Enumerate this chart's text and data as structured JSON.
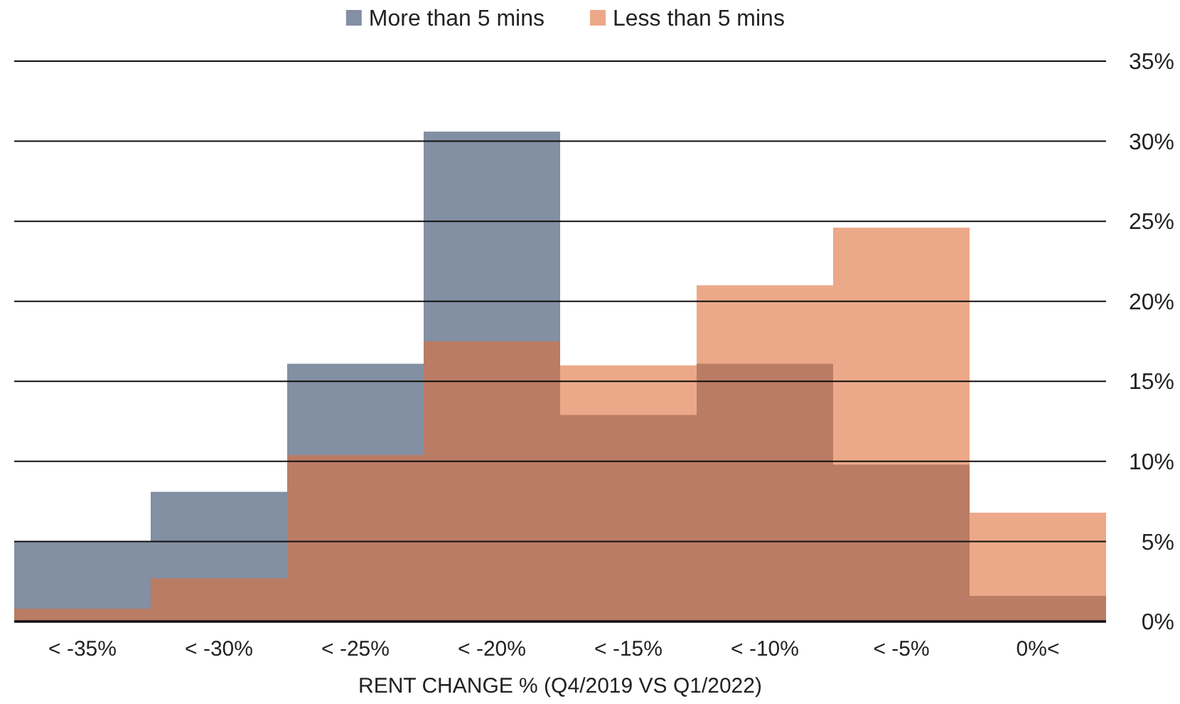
{
  "chart_data": {
    "type": "bar",
    "xlabel": "RENT CHANGE % (Q4/2019 VS Q1/2022)",
    "categories": [
      "< -35%",
      "< -30%",
      "< -25%",
      "< -20%",
      "< -15%",
      "< -10%",
      "< -5%",
      "0%<"
    ],
    "series": [
      {
        "name": "More than 5 mins",
        "color": "#838fa2",
        "values": [
          5.0,
          8.1,
          16.1,
          30.6,
          12.9,
          16.1,
          9.8,
          1.6
        ]
      },
      {
        "name": "Less than 5 mins",
        "color": "#e0703a",
        "values": [
          0.8,
          2.7,
          10.4,
          17.5,
          16.0,
          21.0,
          24.6,
          6.8
        ]
      }
    ],
    "ylim": [
      0,
      35
    ],
    "yticks": [
      {
        "value": 0,
        "label": "0%"
      },
      {
        "value": 5,
        "label": "5%"
      },
      {
        "value": 10,
        "label": "10%"
      },
      {
        "value": 15,
        "label": "15%"
      },
      {
        "value": 20,
        "label": "20%"
      },
      {
        "value": 25,
        "label": "25%"
      },
      {
        "value": 30,
        "label": "30%"
      },
      {
        "value": 35,
        "label": "35%"
      }
    ],
    "grid": "y",
    "legend": "top"
  }
}
